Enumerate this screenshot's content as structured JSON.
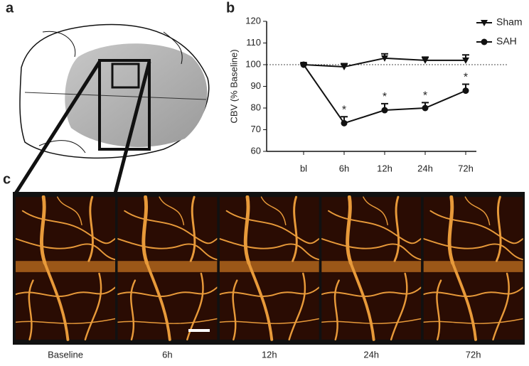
{
  "panel_labels": [
    "a",
    "b",
    "c"
  ],
  "image_captions": [
    "Baseline",
    "6h",
    "12h",
    "24h",
    "72h"
  ],
  "chart_data": {
    "type": "line",
    "ylabel": "CBV (% Baseline)",
    "categories": [
      "bl",
      "6h",
      "12h",
      "24h",
      "72h"
    ],
    "series": [
      {
        "name": "Sham",
        "color": "#111111",
        "marker": "triangle-down",
        "values": [
          100,
          99,
          103,
          102,
          102
        ],
        "errors": [
          0.5,
          1.5,
          2,
          1.5,
          2.5
        ]
      },
      {
        "name": "SAH",
        "color": "#111111",
        "marker": "circle",
        "values": [
          100,
          73,
          79,
          80,
          88
        ],
        "errors": [
          0.5,
          3,
          3,
          2.5,
          3
        ],
        "significance": [
          null,
          "*",
          "*",
          "*",
          "*"
        ]
      }
    ],
    "reference_line": 100,
    "ylim": [
      60,
      120
    ],
    "yticks": [
      60,
      70,
      80,
      90,
      100,
      110,
      120
    ],
    "legend": "top-right"
  }
}
